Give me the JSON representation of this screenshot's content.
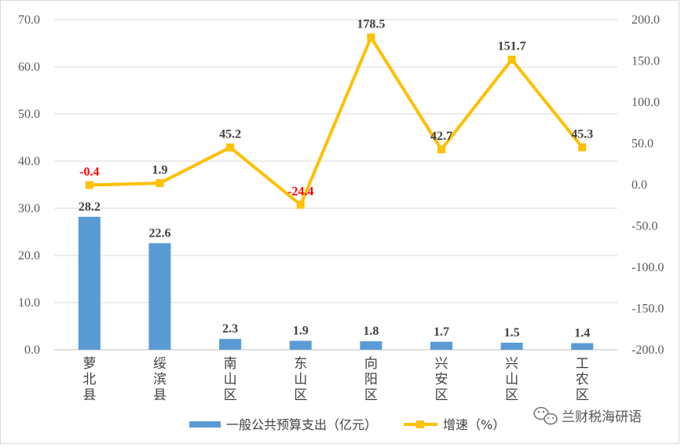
{
  "chart_data": {
    "type": "bar+line",
    "categories": [
      "萝\n北\n县",
      "绥\n滨\n县",
      "南\n山\n区",
      "东\n山\n区",
      "向\n阳\n区",
      "兴\n安\n区",
      "兴\n山\n区",
      "工\n农\n区"
    ],
    "series": [
      {
        "name": "一般公共预算支出（亿元）",
        "type": "bar",
        "axis": "left",
        "color": "#5b9bd5",
        "values": [
          28.2,
          22.6,
          2.3,
          1.9,
          1.8,
          1.7,
          1.5,
          1.4
        ],
        "labels": [
          "28.2",
          "22.6",
          "2.3",
          "1.9",
          "1.8",
          "1.7",
          "1.5",
          "1.4"
        ]
      },
      {
        "name": "增速（%）",
        "type": "line",
        "axis": "right",
        "color": "#ffc000",
        "values": [
          -0.4,
          1.9,
          45.2,
          -24.4,
          178.5,
          42.7,
          151.7,
          45.3
        ],
        "labels": [
          "-0.4",
          "1.9",
          "45.2",
          "-24.4",
          "178.5",
          "42.7",
          "151.7",
          "45.3"
        ],
        "negative_label_color": "#ff0000",
        "positive_label_color": "#404040"
      }
    ],
    "left_axis": {
      "ylim": [
        0,
        70
      ],
      "ticks": [
        0,
        10,
        20,
        30,
        40,
        50,
        60,
        70
      ],
      "tick_labels": [
        "0.0",
        "10.0",
        "20.0",
        "30.0",
        "40.0",
        "50.0",
        "60.0",
        "70.0"
      ]
    },
    "right_axis": {
      "ylim": [
        -200,
        200
      ],
      "ticks": [
        -200,
        -150,
        -100,
        -50,
        0,
        50,
        100,
        150,
        200
      ],
      "tick_labels": [
        "-200.0",
        "-150.0",
        "-100.0",
        "-50.0",
        "0.0",
        "50.0",
        "100.0",
        "150.0",
        "200.0"
      ]
    },
    "grid": true,
    "legend_position": "bottom"
  },
  "legend": {
    "bar_label": "一般公共预算支出（亿元）",
    "line_label": "增速（%）"
  },
  "watermark": {
    "text": "兰财税海研语",
    "icon": "wechat-icon"
  }
}
